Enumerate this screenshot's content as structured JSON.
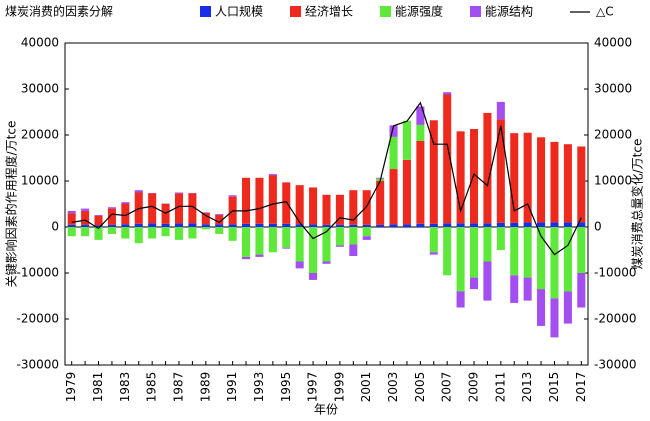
{
  "chart_data": {
    "type": "bar",
    "stacked": true,
    "legend_title": "煤炭消费的因素分解",
    "x_label": "年份",
    "y_label": "关键影响因素的作用程度/万tce",
    "y2_label": "煤炭消费总量变化/万tce",
    "categories": [
      "1979",
      null,
      "1981",
      null,
      "1983",
      null,
      "1985",
      null,
      "1987",
      null,
      "1989",
      null,
      "1991",
      null,
      "1993",
      null,
      "1995",
      null,
      "1997",
      null,
      "1999",
      null,
      "2001",
      null,
      "2003",
      null,
      "2005",
      null,
      "2007",
      null,
      "2009",
      null,
      "2011",
      null,
      "2013",
      null,
      "2015",
      null,
      "2017"
    ],
    "ylim": [
      -30000,
      40000
    ],
    "yticks": [
      -30000,
      -20000,
      -10000,
      0,
      10000,
      20000,
      30000,
      40000
    ],
    "y2lim": [
      -30000,
      40000
    ],
    "y2ticks": [
      -30000,
      -20000,
      -10000,
      0,
      10000,
      20000,
      30000,
      40000
    ],
    "series": [
      {
        "name": "人口规模",
        "color": "#1a2ee8",
        "values": [
          500,
          500,
          400,
          500,
          600,
          700,
          800,
          700,
          800,
          800,
          600,
          600,
          600,
          700,
          700,
          700,
          700,
          600,
          600,
          500,
          500,
          500,
          500,
          500,
          600,
          600,
          700,
          700,
          800,
          800,
          800,
          800,
          900,
          900,
          1000,
          1000,
          1000,
          1000,
          1000
        ]
      },
      {
        "name": "经济增长",
        "color": "#ee2a1e",
        "values": [
          2500,
          3000,
          2000,
          3500,
          4500,
          6800,
          6500,
          4300,
          6500,
          6500,
          2500,
          2000,
          6000,
          10000,
          10000,
          10500,
          9000,
          8500,
          8000,
          6500,
          6500,
          7500,
          7500,
          9500,
          12000,
          14000,
          18000,
          22500,
          28000,
          20000,
          20500,
          24000,
          22500,
          19500,
          19500,
          18500,
          17500,
          17000,
          16500
        ]
      },
      {
        "name": "能源强度",
        "color": "#5de83a",
        "values": [
          -2000,
          -2000,
          -2800,
          -1500,
          -2500,
          -3500,
          -2500,
          -2000,
          -2800,
          -2500,
          -500,
          -1500,
          -3000,
          -6500,
          -6000,
          -5500,
          -4500,
          -7500,
          -10000,
          -7500,
          -4000,
          -3800,
          -2000,
          500,
          7000,
          8500,
          3500,
          -5500,
          -10500,
          -14000,
          -11000,
          -7500,
          -5000,
          -10500,
          -11000,
          -13500,
          -15500,
          -14000,
          -10000
        ]
      },
      {
        "name": "能源结构",
        "color": "#a24ef0",
        "values": [
          500,
          500,
          200,
          300,
          300,
          500,
          100,
          100,
          200,
          100,
          100,
          200,
          300,
          -500,
          -500,
          300,
          -200,
          -1500,
          -1500,
          -500,
          -300,
          -2500,
          -800,
          200,
          2500,
          0,
          4000,
          -500,
          500,
          -3500,
          -2500,
          -8500,
          3800,
          -6000,
          -5000,
          -8000,
          -8500,
          -7000,
          -7500
        ]
      },
      {
        "name": "△C",
        "type": "line",
        "axis": "y2",
        "color": "#000000",
        "values": [
          1000,
          1500,
          -300,
          2800,
          2500,
          4000,
          4500,
          3000,
          4500,
          4500,
          2500,
          1000,
          3500,
          3500,
          4000,
          5000,
          5500,
          1000,
          -2500,
          -1000,
          2000,
          1500,
          4500,
          10000,
          22000,
          23000,
          27000,
          18000,
          18000,
          3500,
          11500,
          9000,
          22000,
          3500,
          5000,
          -2000,
          -6000,
          -4000,
          2000
        ]
      }
    ]
  }
}
